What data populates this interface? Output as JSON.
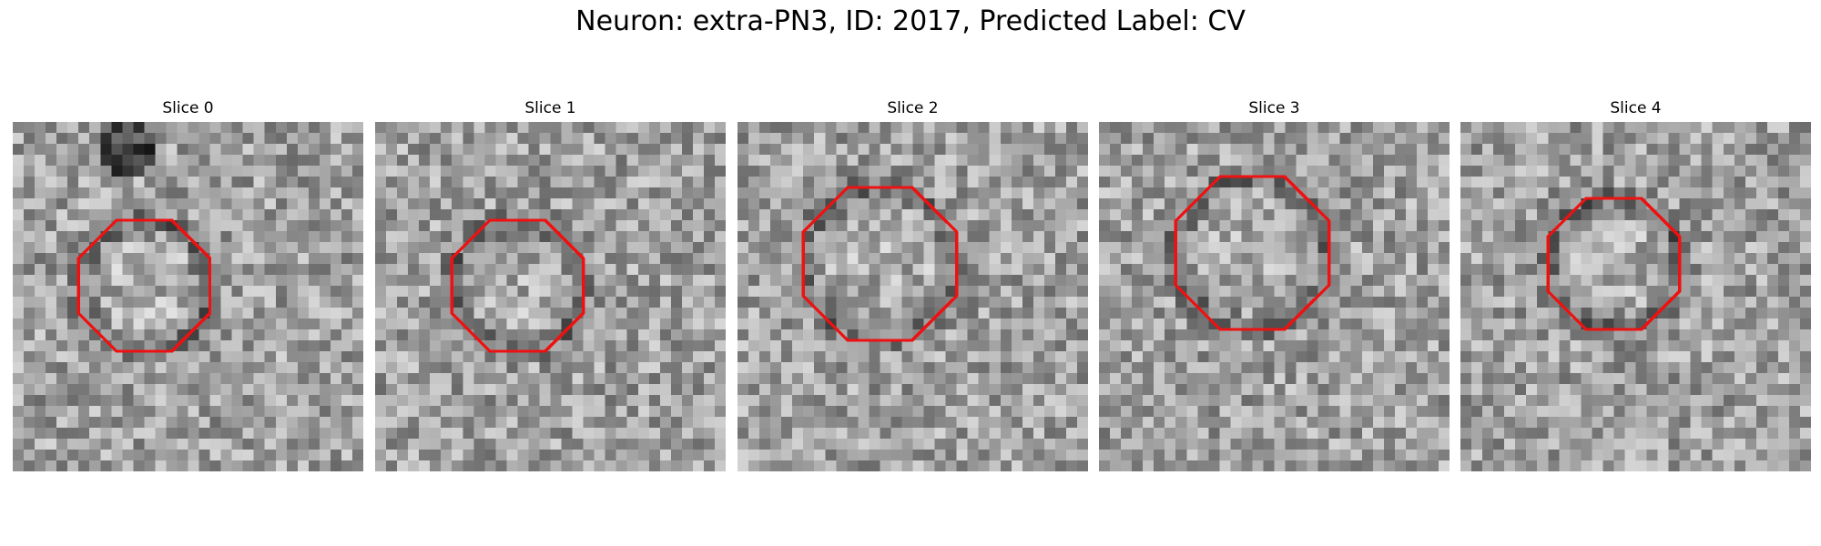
{
  "figure": {
    "title": "Neuron: extra-PN3, ID: 2017, Predicted Label: CV"
  },
  "panels": [
    {
      "title": "Slice 0",
      "seed": 11,
      "rad": 6,
      "dark_blob": true
    },
    {
      "title": "Slice 1",
      "seed": 23,
      "rad": 6
    },
    {
      "title": "Slice 2",
      "seed": 37,
      "rad": 7
    },
    {
      "title": "Slice 3",
      "seed": 53,
      "rad": 7
    },
    {
      "title": "Slice 4",
      "seed": 71,
      "rad": 6
    }
  ],
  "colors": {
    "contour": "#ee1111",
    "background": "#ffffff"
  }
}
